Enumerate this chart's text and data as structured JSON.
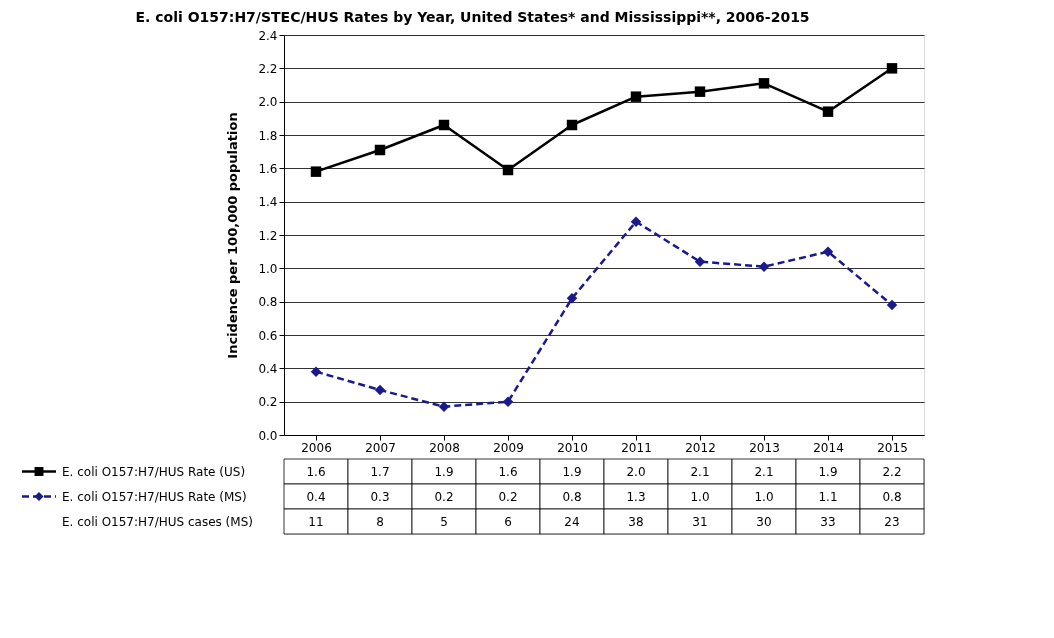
{
  "chart_data": {
    "type": "line",
    "title": "E. coli O157:H7/STEC/HUS Rates by Year, United States* and Mississippi**, 2006-2015",
    "ylabel": "Incidence per 100,000 population",
    "categories": [
      "2006",
      "2007",
      "2008",
      "2009",
      "2010",
      "2011",
      "2012",
      "2013",
      "2014",
      "2015"
    ],
    "series": [
      {
        "name": "E. coli O157:H7/HUS Rate (US)",
        "color": "#000000",
        "marker": "square",
        "line_style": "solid",
        "values": [
          1.58,
          1.71,
          1.86,
          1.59,
          1.86,
          2.03,
          2.06,
          2.11,
          1.94,
          2.2
        ],
        "value_labels": [
          "1.6",
          "1.7",
          "1.9",
          "1.6",
          "1.9",
          "2.0",
          "2.1",
          "2.1",
          "1.9",
          "2.2"
        ]
      },
      {
        "name": "E. coli O157:H7/HUS Rate (MS)",
        "color": "#1a1a8c",
        "marker": "diamond",
        "line_style": "dashed",
        "values": [
          0.38,
          0.27,
          0.17,
          0.2,
          0.82,
          1.28,
          1.04,
          1.01,
          1.1,
          0.78
        ],
        "value_labels": [
          "0.4",
          "0.3",
          "0.2",
          "0.2",
          "0.8",
          "1.3",
          "1.0",
          "1.0",
          "1.1",
          "0.8"
        ]
      }
    ],
    "annotations": [
      "E. coli O157:H7/HUS cases (MS)",
      "11",
      "8",
      "5",
      "6",
      "24",
      "38",
      "31",
      "30",
      "33",
      "23"
    ],
    "ylim": [
      0,
      2.4
    ],
    "yticks": [
      {
        "value": 0,
        "label": "0.0"
      },
      0.2,
      0.4,
      0.6,
      0.8,
      {
        "value": 1,
        "label": "1.0"
      },
      1.2,
      1.4,
      1.6,
      1.8,
      {
        "value": 2,
        "label": "2.0"
      },
      2.2,
      2.4
    ],
    "grid": "y",
    "legend": "bottom"
  }
}
